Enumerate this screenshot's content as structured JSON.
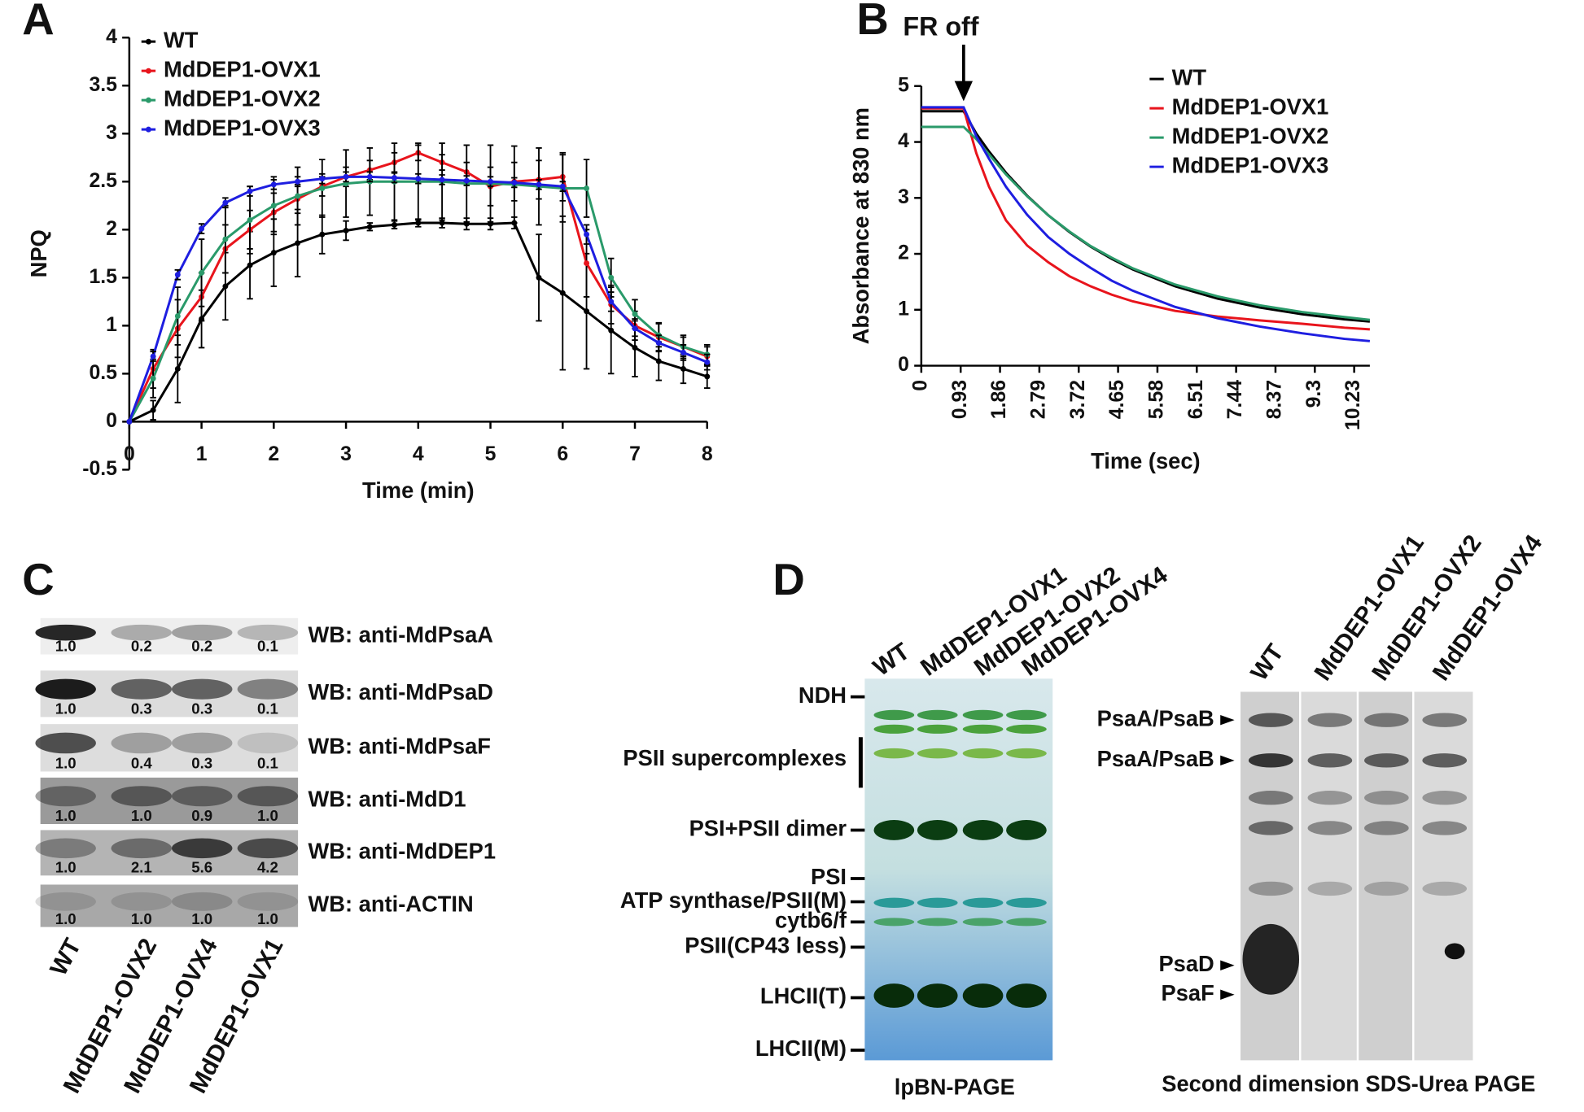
{
  "chart_data": [
    {
      "type": "line",
      "panel": "A",
      "xlabel": "Time (min)",
      "ylabel": "NPQ",
      "x": [
        0,
        0.33,
        0.67,
        1,
        1.33,
        1.67,
        2,
        2.33,
        2.67,
        3,
        3.33,
        3.67,
        4,
        4.33,
        4.67,
        5,
        5.33,
        5.67,
        6,
        6.33,
        6.67,
        7,
        7.33,
        7.67,
        8
      ],
      "xlim": [
        0,
        8
      ],
      "xticks": [
        0,
        1,
        2,
        3,
        4,
        5,
        6,
        7,
        8
      ],
      "ylim": [
        -0.5,
        4
      ],
      "yticks": [
        -0.5,
        0,
        0.5,
        1,
        1.5,
        2,
        2.5,
        3,
        3.5,
        4
      ],
      "legend": "top-left",
      "markers": true,
      "error_color": "#000000",
      "series": [
        {
          "name": "WT",
          "color": "#000000",
          "values": [
            0,
            0.12,
            0.55,
            1.07,
            1.41,
            1.63,
            1.76,
            1.86,
            1.95,
            1.99,
            2.03,
            2.05,
            2.07,
            2.07,
            2.06,
            2.06,
            2.07,
            1.5,
            1.34,
            1.15,
            0.95,
            0.77,
            0.63,
            0.55,
            0.47
          ],
          "errors": [
            0,
            0.1,
            0.35,
            0.3,
            0.35,
            0.35,
            0.35,
            0.35,
            0.2,
            0.1,
            0.04,
            0.04,
            0.04,
            0.05,
            0.06,
            0.06,
            0.06,
            0.45,
            0.8,
            0.6,
            0.45,
            0.3,
            0.2,
            0.15,
            0.12
          ]
        },
        {
          "name": "MdDEP1-OVX1",
          "color": "#e8141c",
          "values": [
            0,
            0.55,
            0.97,
            1.3,
            1.8,
            2.0,
            2.18,
            2.32,
            2.45,
            2.55,
            2.62,
            2.7,
            2.8,
            2.7,
            2.6,
            2.45,
            2.5,
            2.52,
            2.55,
            1.65,
            1.22,
            1.0,
            0.88,
            0.78,
            0.68
          ],
          "errors": [
            0,
            0.2,
            0.3,
            0.25,
            0.25,
            0.2,
            0.2,
            0.15,
            0.1,
            0.1,
            0.1,
            0.1,
            0.08,
            0.08,
            0.1,
            0.2,
            0.2,
            0.2,
            0.25,
            0.35,
            0.2,
            0.15,
            0.15,
            0.12,
            0.1
          ]
        },
        {
          "name": "MdDEP1-OVX2",
          "color": "#2a9a6a",
          "values": [
            0,
            0.45,
            1.1,
            1.55,
            1.9,
            2.1,
            2.25,
            2.35,
            2.43,
            2.48,
            2.5,
            2.5,
            2.5,
            2.5,
            2.48,
            2.48,
            2.47,
            2.45,
            2.43,
            2.43,
            1.5,
            1.12,
            0.9,
            0.78,
            0.7
          ],
          "errors": [
            0,
            0.2,
            0.3,
            0.35,
            0.35,
            0.35,
            0.3,
            0.3,
            0.3,
            0.35,
            0.35,
            0.4,
            0.4,
            0.4,
            0.4,
            0.4,
            0.4,
            0.4,
            0.35,
            0.3,
            0.2,
            0.15,
            0.12,
            0.1,
            0.1
          ]
        },
        {
          "name": "MdDEP1-OVX3",
          "color": "#1e1ee0",
          "values": [
            0,
            0.68,
            1.53,
            2.01,
            2.28,
            2.4,
            2.47,
            2.5,
            2.53,
            2.55,
            2.55,
            2.54,
            2.53,
            2.52,
            2.51,
            2.5,
            2.49,
            2.47,
            2.45,
            1.95,
            1.25,
            0.97,
            0.82,
            0.72,
            0.62
          ],
          "errors": [
            0,
            0.05,
            0.05,
            0.05,
            0.05,
            0.05,
            0.05,
            0.05,
            0.05,
            0.05,
            0.05,
            0.05,
            0.05,
            0.05,
            0.05,
            0.05,
            0.05,
            0.05,
            0.05,
            0.1,
            0.1,
            0.08,
            0.08,
            0.08,
            0.08
          ]
        }
      ]
    },
    {
      "type": "line",
      "panel": "B",
      "xlabel": "Time (sec)",
      "ylabel": "Absorbance at 830 nm",
      "annotation": {
        "text": "FR off",
        "x": 1.0
      },
      "x": [
        0,
        0.5,
        1.0,
        1.3,
        1.6,
        2.0,
        2.5,
        3.0,
        3.5,
        4.0,
        4.5,
        5.0,
        6.0,
        7.0,
        8.0,
        9.0,
        10.0,
        10.6
      ],
      "xlim": [
        0,
        10.6
      ],
      "xticks": [
        0,
        0.93,
        1.86,
        2.79,
        3.72,
        4.65,
        5.58,
        6.51,
        7.44,
        8.37,
        9.3,
        10.23
      ],
      "ylim": [
        0,
        5
      ],
      "yticks": [
        0,
        1,
        2,
        3,
        4,
        5
      ],
      "legend": "top-right",
      "markers": false,
      "series": [
        {
          "name": "WT",
          "color": "#000000",
          "values": [
            4.55,
            4.55,
            4.55,
            4.15,
            3.83,
            3.45,
            3.04,
            2.69,
            2.39,
            2.13,
            1.91,
            1.72,
            1.42,
            1.2,
            1.04,
            0.92,
            0.83,
            0.79
          ]
        },
        {
          "name": "MdDEP1-OVX1",
          "color": "#e8141c",
          "values": [
            4.6,
            4.6,
            4.6,
            3.8,
            3.2,
            2.6,
            2.15,
            1.85,
            1.6,
            1.42,
            1.27,
            1.15,
            0.98,
            0.88,
            0.81,
            0.75,
            0.68,
            0.65
          ]
        },
        {
          "name": "MdDEP1-OVX2",
          "color": "#2a9a6a",
          "values": [
            4.27,
            4.27,
            4.27,
            4.05,
            3.78,
            3.42,
            3.03,
            2.69,
            2.4,
            2.14,
            1.93,
            1.74,
            1.45,
            1.24,
            1.08,
            0.96,
            0.87,
            0.82
          ]
        },
        {
          "name": "MdDEP1-OVX3",
          "color": "#1e1ee0",
          "values": [
            4.62,
            4.62,
            4.62,
            4.1,
            3.7,
            3.2,
            2.7,
            2.3,
            2.0,
            1.75,
            1.52,
            1.34,
            1.05,
            0.85,
            0.7,
            0.58,
            0.48,
            0.44
          ]
        }
      ]
    }
  ],
  "blots": {
    "panel": "C",
    "rows": [
      {
        "label": "WB: anti-MdPsaA",
        "values": [
          "1.0",
          "0.2",
          "0.2",
          "0.1"
        ]
      },
      {
        "label": "WB: anti-MdPsaD",
        "values": [
          "1.0",
          "0.3",
          "0.3",
          "0.1"
        ]
      },
      {
        "label": "WB: anti-MdPsaF",
        "values": [
          "1.0",
          "0.4",
          "0.3",
          "0.1"
        ]
      },
      {
        "label": "WB: anti-MdD1",
        "values": [
          "1.0",
          "1.0",
          "0.9",
          "1.0"
        ]
      },
      {
        "label": "WB: anti-MdDEP1",
        "values": [
          "1.0",
          "2.1",
          "5.6",
          "4.2"
        ]
      },
      {
        "label": "WB: anti-ACTIN",
        "values": [
          "1.0",
          "1.0",
          "1.0",
          "1.0"
        ]
      }
    ],
    "lanes": [
      "WT",
      "MdDEP1-OVX2",
      "MdDEP1-OVX4",
      "MdDEP1-OVX1"
    ]
  },
  "gels": {
    "panel": "D",
    "bn_lanes": [
      "WT",
      "MdDEP1-OVX1",
      "MdDEP1-OVX2",
      "MdDEP1-OVX4"
    ],
    "bn_labels": [
      "NDH",
      "PSII supercomplexes",
      "PSI+PSII dimer",
      "PSI",
      "ATP synthase/PSII(M)",
      "cytb6/f",
      "PSII(CP43 less)",
      "LHCII(T)",
      "LHCII(M)"
    ],
    "bn_caption": "lpBN-PAGE",
    "sds_lanes": [
      "WT",
      "MdDEP1-OVX1",
      "MdDEP1-OVX2",
      "MdDEP1-OVX4"
    ],
    "sds_labels": [
      "PsaA/PsaB",
      "PsaA/PsaB",
      "PsaD",
      "PsaF"
    ],
    "sds_caption": "Second dimension SDS-Urea PAGE"
  }
}
